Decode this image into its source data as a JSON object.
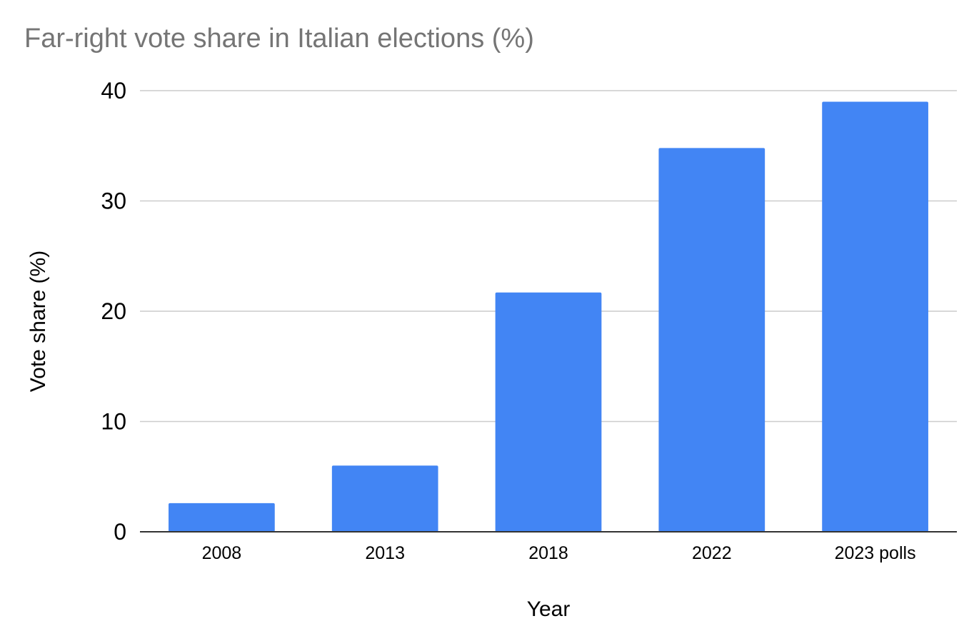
{
  "chart_data": {
    "type": "bar",
    "title": "Far-right vote share in Italian elections (%)",
    "xlabel": "Year",
    "ylabel": "Vote share (%)",
    "categories": [
      "2008",
      "2013",
      "2018",
      "2022",
      "2023 polls"
    ],
    "series": [
      {
        "values": [
          2.6,
          6.0,
          21.7,
          34.8,
          39.0
        ]
      }
    ],
    "ylim": [
      0,
      40
    ],
    "yticks": [
      0,
      10,
      20,
      30,
      40
    ],
    "grid": true,
    "legend": "none",
    "colors": {
      "bar": "#4285f4"
    }
  }
}
